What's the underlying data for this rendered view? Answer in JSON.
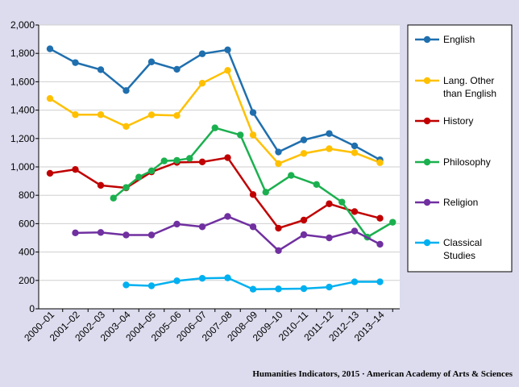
{
  "source_note": "Humanities Indicators, 2015 · American Academy of Arts & Sciences",
  "chart_data": {
    "type": "line",
    "title": "",
    "xlabel": "",
    "ylabel": "",
    "ylim": [
      0,
      2000
    ],
    "yticks": [
      0,
      200,
      400,
      600,
      800,
      1000,
      1200,
      1400,
      1600,
      1800,
      2000
    ],
    "ytick_labels": [
      "0",
      "200",
      "400",
      "600",
      "800",
      "1,000",
      "1,200",
      "1,400",
      "1,600",
      "1,800",
      "2,000"
    ],
    "categories": [
      "2000–01",
      "2001–02",
      "2002–03",
      "2003–04",
      "2004–05",
      "2005–06",
      "2006–07",
      "2007–08",
      "2008–09",
      "2009–10",
      "2010–11",
      "2011–12",
      "2012–13",
      "2013–14"
    ],
    "grid": true,
    "legend_position": "right",
    "series": [
      {
        "name": "English",
        "color": "#1f6fae",
        "points": [
          [
            0,
            1832
          ],
          [
            1,
            1735
          ],
          [
            2,
            1685
          ],
          [
            3,
            1538
          ],
          [
            4,
            1740
          ],
          [
            5,
            1688
          ],
          [
            6,
            1797
          ],
          [
            7,
            1825
          ],
          [
            8,
            1383
          ],
          [
            9,
            1105
          ],
          [
            10,
            1190
          ],
          [
            11,
            1235
          ],
          [
            12,
            1148
          ],
          [
            13,
            1050
          ]
        ]
      },
      {
        "name": "Lang. Other than English",
        "legend_lines": [
          "Lang. Other",
          "than English"
        ],
        "color": "#ffc000",
        "points": [
          [
            0,
            1482
          ],
          [
            1,
            1368
          ],
          [
            2,
            1368
          ],
          [
            3,
            1285
          ],
          [
            4,
            1367
          ],
          [
            5,
            1362
          ],
          [
            6,
            1590
          ],
          [
            7,
            1680
          ],
          [
            8,
            1225
          ],
          [
            9,
            1023
          ],
          [
            10,
            1095
          ],
          [
            11,
            1128
          ],
          [
            12,
            1100
          ],
          [
            13,
            1030
          ]
        ]
      },
      {
        "name": "History",
        "color": "#c00000",
        "points": [
          [
            0,
            955
          ],
          [
            1,
            982
          ],
          [
            2,
            870
          ],
          [
            3,
            852
          ],
          [
            4,
            965
          ],
          [
            5,
            1032
          ],
          [
            6,
            1035
          ],
          [
            7,
            1065
          ],
          [
            8,
            805
          ],
          [
            9,
            568
          ],
          [
            10,
            625
          ],
          [
            11,
            740
          ],
          [
            12,
            685
          ],
          [
            13,
            638
          ]
        ]
      },
      {
        "name": "Philosophy",
        "color": "#1bb04f",
        "points": [
          [
            2.5,
            780
          ],
          [
            3,
            855
          ],
          [
            3.5,
            928
          ],
          [
            4,
            972
          ],
          [
            4.5,
            1042
          ],
          [
            5,
            1046
          ],
          [
            5.5,
            1060
          ],
          [
            6.5,
            1275
          ],
          [
            7.5,
            1225
          ],
          [
            8.5,
            822
          ],
          [
            9.5,
            940
          ],
          [
            10.5,
            876
          ],
          [
            11.5,
            752
          ],
          [
            12.5,
            505
          ],
          [
            13.5,
            610
          ]
        ]
      },
      {
        "name": "Religion",
        "color": "#7030a0",
        "points": [
          [
            1,
            535
          ],
          [
            2,
            538
          ],
          [
            3,
            520
          ],
          [
            4,
            520
          ],
          [
            5,
            597
          ],
          [
            6,
            578
          ],
          [
            7,
            651
          ],
          [
            8,
            578
          ],
          [
            9,
            410
          ],
          [
            10,
            522
          ],
          [
            11,
            500
          ],
          [
            12,
            548
          ],
          [
            13,
            455
          ]
        ]
      },
      {
        "name": "Classical Studies",
        "legend_lines": [
          "Classical",
          "Studies"
        ],
        "color": "#00b0f0",
        "points": [
          [
            3,
            168
          ],
          [
            4,
            162
          ],
          [
            5,
            197
          ],
          [
            6,
            215
          ],
          [
            7,
            218
          ],
          [
            8,
            138
          ],
          [
            9,
            140
          ],
          [
            10,
            142
          ],
          [
            11,
            153
          ],
          [
            12,
            190
          ],
          [
            13,
            190
          ]
        ]
      }
    ]
  }
}
